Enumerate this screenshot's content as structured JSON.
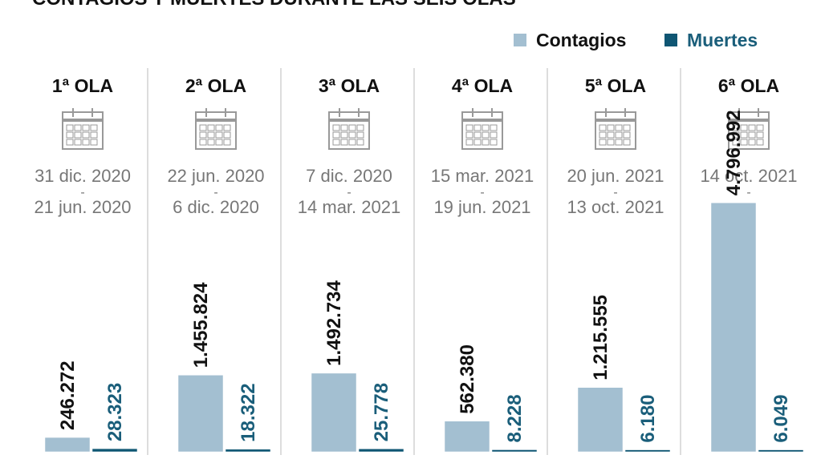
{
  "chart_data": {
    "type": "grouped-bar-columns",
    "title": "CONTAGIOS Y MUERTES DURANTE LAS SEIS OLAS",
    "categories": [
      "1ª OLA",
      "2ª OLA",
      "3ª OLA",
      "4ª OLA",
      "5ª OLA",
      "6ª OLA"
    ],
    "date_separator": "-",
    "dates": [
      {
        "start": "31 dic. 2020",
        "end": "21 jun. 2020"
      },
      {
        "start": "22 jun. 2020",
        "end": "6 dic. 2020"
      },
      {
        "start": "7 dic. 2020",
        "end": "14 mar. 2021"
      },
      {
        "start": "15 mar. 2021",
        "end": "19 jun. 2021"
      },
      {
        "start": "20 jun. 2021",
        "end": "13 oct. 2021"
      },
      {
        "start": "14 oct. 2021",
        "end": null
      }
    ],
    "series": [
      {
        "name": "Contagios",
        "color": "#a3bfd1",
        "label_color": "#111111",
        "values": [
          246272,
          1455824,
          1492734,
          562380,
          1215555,
          4796992
        ],
        "value_labels": [
          "246.272",
          "1.455.824",
          "1.492.734",
          "562.380",
          "1.215.555",
          "4.796.992"
        ]
      },
      {
        "name": "Muertes",
        "color": "#0f5673",
        "label_color": "#1a5e7a",
        "values": [
          28323,
          18322,
          25778,
          8228,
          6180,
          6049
        ],
        "value_labels": [
          "28.323",
          "18.322",
          "25.778",
          "8.228",
          "6.180",
          "6.049"
        ]
      }
    ],
    "ylim": [
      0,
      4800000
    ]
  }
}
